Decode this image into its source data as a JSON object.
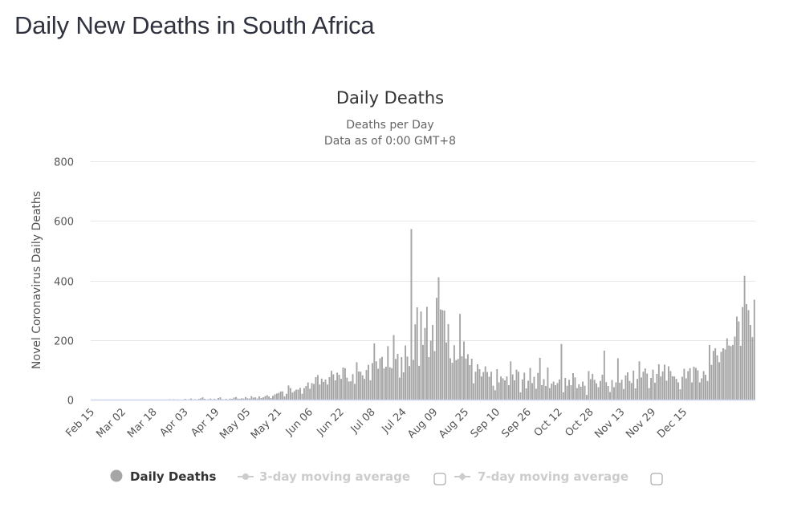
{
  "page": {
    "title": "Daily New Deaths in South Africa"
  },
  "chart_data": {
    "type": "bar",
    "title": "Daily Deaths",
    "subtitle_lines": [
      "Deaths per Day",
      "Data as of 0:00 GMT+8"
    ],
    "xlabel": "",
    "ylabel": "Novel Coronavirus Daily Deaths",
    "ylim": [
      0,
      800
    ],
    "yticks": [
      0,
      200,
      400,
      600,
      800
    ],
    "grid": true,
    "legend_position": "bottom",
    "x_start_date": "Feb 15",
    "x_ticks": [
      "Feb 15",
      "Mar 02",
      "Mar 18",
      "Apr 03",
      "Apr 19",
      "May 05",
      "May 21",
      "Jun 06",
      "Jun 22",
      "Jul 08",
      "Jul 24",
      "Aug 09",
      "Aug 25",
      "Sep 10",
      "Sep 26",
      "Oct 12",
      "Oct 28",
      "Nov 13",
      "Nov 29",
      "Dec 15"
    ],
    "x_tick_interval_days": 16,
    "colors": {
      "bar": "#a6a6a6",
      "bar_edge": "#8c8c8c",
      "axis": "#ccd6eb",
      "grid": "#e6e6e6"
    },
    "series": [
      {
        "name": "Daily Deaths",
        "values": [
          0,
          0,
          0,
          0,
          0,
          0,
          0,
          0,
          0,
          0,
          0,
          0,
          0,
          0,
          0,
          0,
          0,
          0,
          0,
          0,
          0,
          0,
          0,
          0,
          0,
          0,
          0,
          0,
          0,
          0,
          0,
          0,
          0,
          0,
          0,
          0,
          0,
          0,
          0,
          0,
          1,
          0,
          1,
          0,
          0,
          0,
          0,
          0,
          2,
          0,
          1,
          3,
          0,
          1,
          0,
          2,
          4,
          7,
          2,
          0,
          1,
          3,
          0,
          2,
          0,
          5,
          7,
          1,
          0,
          2,
          0,
          3,
          2,
          6,
          8,
          3,
          2,
          4,
          3,
          8,
          4,
          3,
          11,
          6,
          7,
          3,
          10,
          5,
          7,
          11,
          14,
          10,
          5,
          12,
          17,
          20,
          22,
          27,
          27,
          10,
          19,
          47,
          38,
          23,
          28,
          33,
          33,
          39,
          19,
          38,
          45,
          57,
          36,
          55,
          52,
          75,
          82,
          50,
          70,
          59,
          67,
          50,
          75,
          96,
          84,
          64,
          90,
          83,
          69,
          107,
          105,
          73,
          60,
          61,
          85,
          52,
          125,
          94,
          93,
          81,
          69,
          99,
          116,
          64,
          122,
          188,
          128,
          103,
          138,
          143,
          104,
          110,
          179,
          108,
          105,
          216,
          136,
          153,
          73,
          142,
          91,
          181,
          144,
          112,
          572,
          133,
          252,
          309,
          113,
          295,
          183,
          240,
          311,
          142,
          197,
          250,
          162,
          341,
          410,
          302,
          300,
          298,
          191,
          253,
          138,
          123,
          182,
          132,
          136,
          287,
          145,
          195,
          137,
          152,
          115,
          137,
          54,
          93,
          118,
          102,
          77,
          92,
          111,
          92,
          76,
          93,
          46,
          31,
          102,
          57,
          77,
          71,
          64,
          77,
          48,
          128,
          84,
          64,
          100,
          93,
          24,
          67,
          90,
          37,
          63,
          106,
          55,
          76,
          36,
          89,
          140,
          48,
          68,
          45,
          107,
          38,
          53,
          60,
          48,
          55,
          67,
          186,
          24,
          72,
          46,
          66,
          48,
          88,
          74,
          38,
          51,
          43,
          60,
          46,
          15,
          95,
          68,
          86,
          66,
          54,
          41,
          62,
          83,
          164,
          58,
          45,
          25,
          65,
          41,
          57,
          138,
          56,
          66,
          35,
          81,
          91,
          62,
          55,
          97,
          37,
          69,
          128,
          74,
          93,
          104,
          87,
          38,
          72,
          100,
          56,
          86,
          118,
          77,
          94,
          117,
          63,
          111,
          95,
          78,
          77,
          69,
          57,
          34,
          76,
          103,
          71,
          95,
          105,
          57,
          110,
          106,
          98,
          57,
          71,
          95,
          83,
          62,
          183,
          116,
          163,
          172,
          148,
          125,
          160,
          172,
          168,
          205,
          181,
          179,
          183,
          211,
          278,
          262,
          180,
          310,
          415,
          320,
          300,
          250,
          209,
          335
        ]
      }
    ]
  },
  "legend": {
    "items": [
      {
        "label": "Daily Deaths",
        "active": true,
        "icon": "circle-marker-icon",
        "color": "#a6a6a6",
        "text_color": "#333333"
      },
      {
        "label": "3-day moving average",
        "active": false,
        "icon": "line-marker-icon",
        "color": "#cccccc",
        "text_color": "#cccccc",
        "has_checkbox": true,
        "checked": false
      },
      {
        "label": "7-day moving average",
        "active": false,
        "icon": "line-diamond-marker-icon",
        "color": "#cccccc",
        "text_color": "#cccccc",
        "has_checkbox": true,
        "checked": false
      }
    ]
  }
}
